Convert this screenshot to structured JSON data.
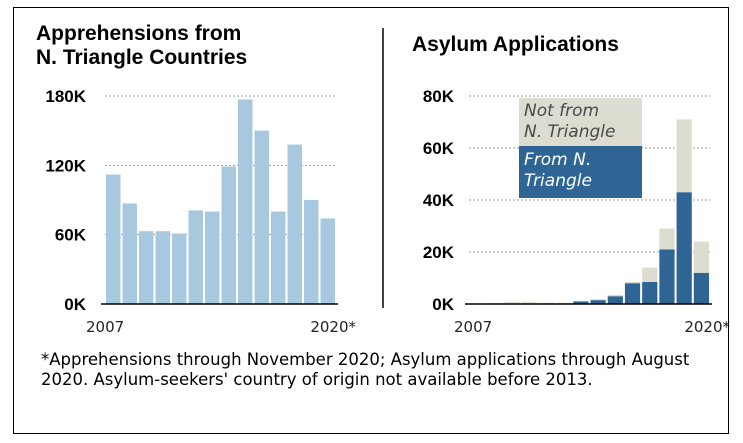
{
  "footnote": "*Apprehensions through November 2020; Asylum applications through August 2020. Asylum-seekers' country of origin not available before 2013.",
  "chart_data": [
    {
      "type": "bar",
      "title_lines": [
        "Apprehensions from",
        "N. Triangle Countries"
      ],
      "x": [
        2007,
        2008,
        2009,
        2010,
        2011,
        2012,
        2013,
        2014,
        2015,
        2016,
        2017,
        2018,
        2019,
        2020
      ],
      "x_tick_labels": [
        "2007",
        "2020*"
      ],
      "values": [
        112000,
        87000,
        63000,
        63000,
        61000,
        81000,
        80000,
        119000,
        177000,
        150000,
        80000,
        138000,
        90000,
        74000
      ],
      "ylim": [
        0,
        180000
      ],
      "y_ticks": [
        0,
        60000,
        120000,
        180000
      ],
      "y_tick_labels": [
        "0K",
        "60K",
        "120K",
        "180K"
      ],
      "grid": true,
      "color": "#a8c8e0"
    },
    {
      "type": "bar",
      "stacked": true,
      "title": "Asylum Applications",
      "x": [
        2007,
        2008,
        2009,
        2010,
        2011,
        2012,
        2013,
        2014,
        2015,
        2016,
        2017,
        2018,
        2019,
        2020
      ],
      "x_tick_labels": [
        "2007",
        "2020*"
      ],
      "series": [
        {
          "name": "From N. Triangle",
          "name_lines": [
            "From N.",
            "Triangle"
          ],
          "color": "#2e6594",
          "values": [
            0,
            0,
            0,
            0,
            0,
            0,
            1000,
            1500,
            3000,
            8000,
            8500,
            21000,
            43000,
            12000
          ]
        },
        {
          "name": "Not from N. Triangle",
          "name_lines": [
            "Not from",
            "N. Triangle"
          ],
          "color": "#dcdcd0",
          "values": [
            300,
            400,
            700,
            700,
            500,
            500,
            0,
            300,
            500,
            500,
            5500,
            8000,
            28000,
            12000
          ]
        }
      ],
      "ylim": [
        0,
        80000
      ],
      "y_ticks": [
        0,
        20000,
        40000,
        60000,
        80000
      ],
      "y_tick_labels": [
        "0K",
        "20K",
        "40K",
        "60K",
        "80K"
      ],
      "grid": true
    }
  ]
}
